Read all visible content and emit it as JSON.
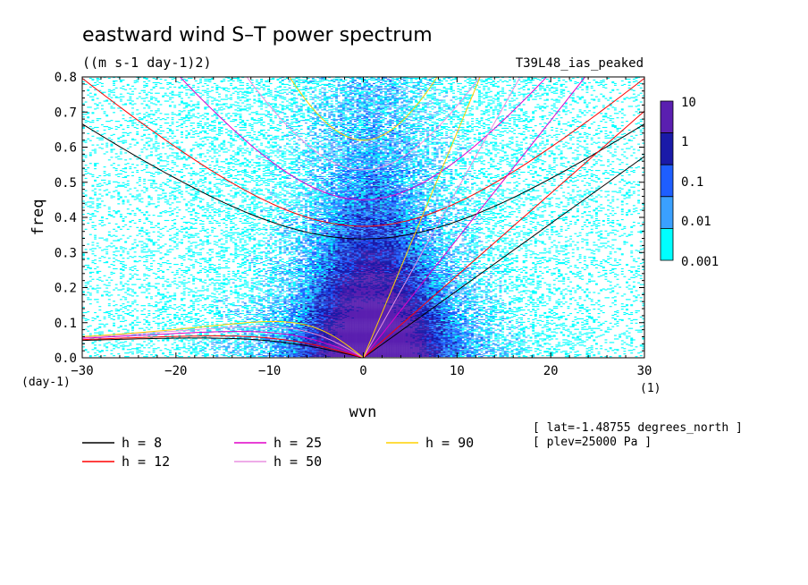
{
  "chart_data": {
    "type": "heatmap",
    "title": "eastward wind S–T power spectrum",
    "units": "((m s-1 day-1)2)",
    "run_label": "T39L48_ias_peaked",
    "xlabel": "wvn",
    "ylabel": "freq",
    "x_units": "(1)",
    "y_units": "(day-1)",
    "xlim": [
      -30,
      30
    ],
    "ylim": [
      0,
      0.8
    ],
    "x_ticks": [
      "-30",
      "-20",
      "-10",
      "0",
      "10",
      "20",
      "30"
    ],
    "y_ticks": [
      "0.0",
      "0.1",
      "0.2",
      "0.3",
      "0.4",
      "0.5",
      "0.6",
      "0.7",
      "0.8"
    ],
    "colorbar": {
      "levels": [
        "10",
        "1",
        "0.1",
        "0.01",
        "0.001"
      ],
      "colors": [
        "#5a1fb0",
        "#1a1aa8",
        "#1e5eff",
        "#3aa0ff",
        "#00ffff"
      ]
    },
    "dispersion_curves": [
      {
        "name": "h =  8",
        "h": 8,
        "color": "#000000"
      },
      {
        "name": "h = 12",
        "h": 12,
        "color": "#ff0000"
      },
      {
        "name": "h = 25",
        "h": 25,
        "color": "#e000c8"
      },
      {
        "name": "h = 50",
        "h": 50,
        "color": "#e890e0"
      },
      {
        "name": "h = 90",
        "h": 90,
        "color": "#ffd000"
      }
    ],
    "annotations": [
      "[ lat=-1.48755 degrees_north ]",
      "[ plev=25000 Pa ]"
    ]
  }
}
